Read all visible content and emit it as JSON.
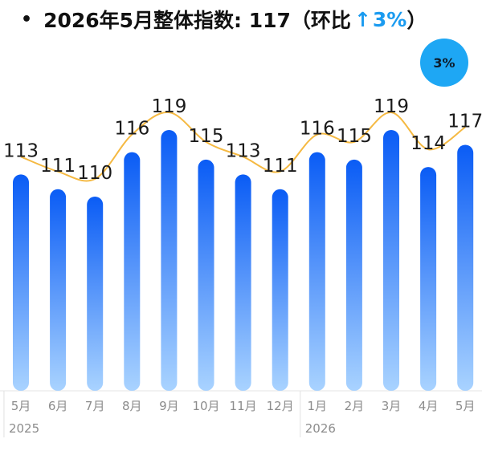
{
  "header": {
    "bullet": "•",
    "title": "2026年5月整体指数: 117（环比",
    "arrow": "↑",
    "change": "3%",
    "close": "）"
  },
  "badge": {
    "text": "3%"
  },
  "chart_data": {
    "type": "bar",
    "categories": [
      "5月",
      "6月",
      "7月",
      "8月",
      "9月",
      "10月",
      "11月",
      "12月",
      "1月",
      "2月",
      "3月",
      "4月",
      "5月"
    ],
    "values": [
      113,
      111,
      110,
      116,
      119,
      115,
      113,
      111,
      116,
      115,
      119,
      114,
      117
    ],
    "year_groups": [
      {
        "label": "2025",
        "start_index": 0
      },
      {
        "label": "2026",
        "start_index": 8
      }
    ],
    "trend_line": true,
    "colors": {
      "bar_top": "#0a5cf5",
      "bar_bottom": "#a9d3ff",
      "line": "#f5b942",
      "value_label": "#1a1a1a",
      "axis_text": "#8c8c8c"
    }
  }
}
